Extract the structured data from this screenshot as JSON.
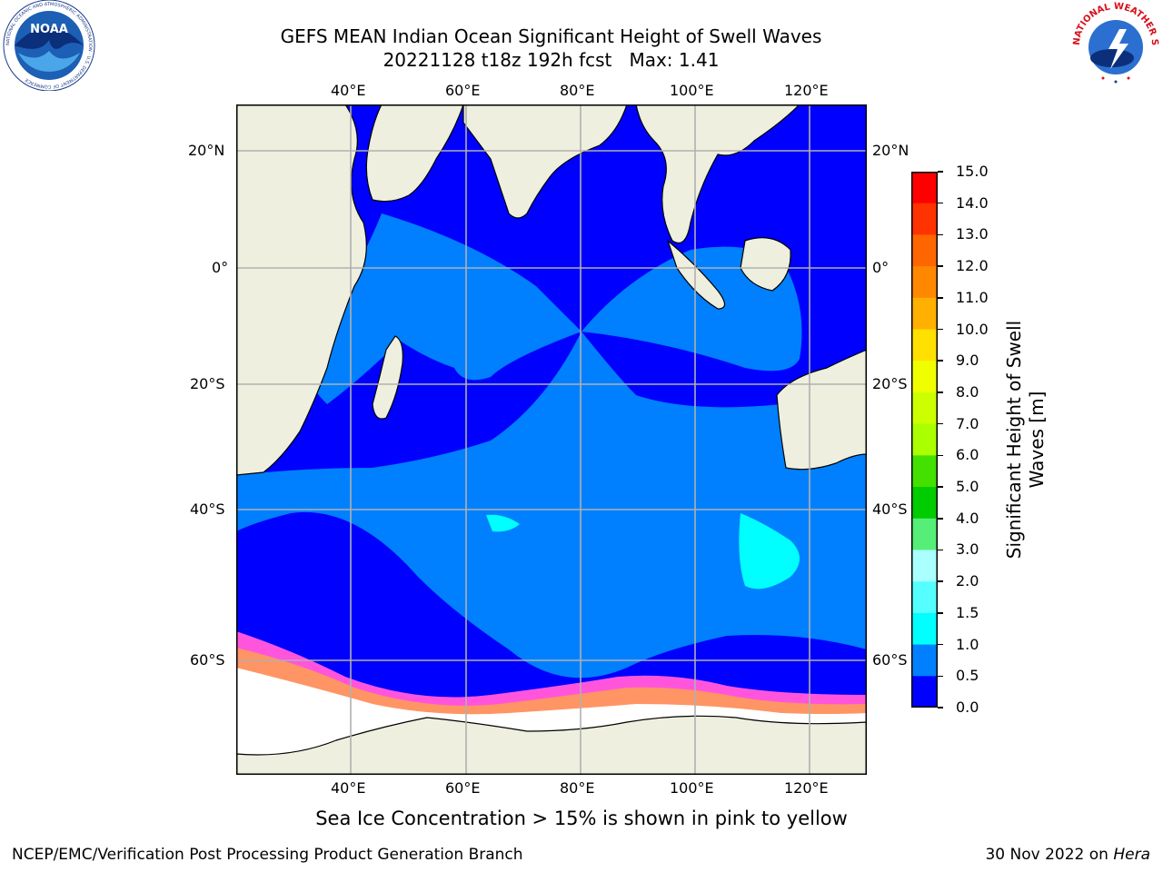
{
  "header": {
    "title_line1": "GEFS MEAN Indian Ocean Significant Height of Swell Waves",
    "title_line2": "20221128 t18z 192h fcst   Max: 1.41",
    "noaa_logo_text": "NOAA",
    "noaa_logo_ring_text": "NATIONAL OCEANIC AND ATMOSPHERIC ADMINISTRATION · U.S. DEPARTMENT OF COMMERCE",
    "nws_logo_ring_text": "NATIONAL WEATHER SERVICE"
  },
  "map": {
    "top_lon_labels": [
      "40°E",
      "60°E",
      "80°E",
      "100°E",
      "120°E"
    ],
    "bottom_lon_labels": [
      "40°E",
      "60°E",
      "80°E",
      "100°E",
      "120°E"
    ],
    "left_lat_labels": [
      "20°N",
      "0°",
      "20°S",
      "40°S",
      "60°S"
    ],
    "right_lat_labels": [
      "20°N",
      "0°",
      "20°S",
      "40°S",
      "60°S"
    ],
    "gridlines": true,
    "colors": {
      "ocean_low": "#0000ff",
      "ocean_mid": "#0080ff",
      "ocean_high": "#00ffff",
      "land": "#efefdf",
      "ice_edge": "#ff55dd",
      "ice_core": "#ffffff"
    }
  },
  "colorbar": {
    "title": "Significant Height of Swell Waves [m]",
    "tick_labels": [
      "15.0",
      "14.0",
      "13.0",
      "12.0",
      "11.0",
      "10.0",
      "9.0",
      "8.0",
      "7.0",
      "6.0",
      "5.0",
      "4.0",
      "3.0",
      "2.0",
      "1.5",
      "1.0",
      "0.5",
      "0.0"
    ],
    "bins": [
      {
        "range": "14.0-15.0",
        "color": "#ff0000"
      },
      {
        "range": "13.0-14.0",
        "color": "#ff3300"
      },
      {
        "range": "12.0-13.0",
        "color": "#ff6600"
      },
      {
        "range": "11.0-12.0",
        "color": "#ff8800"
      },
      {
        "range": "10.0-11.0",
        "color": "#ffb000"
      },
      {
        "range": "9.0-10.0",
        "color": "#ffe000"
      },
      {
        "range": "8.0-9.0",
        "color": "#f0ff00"
      },
      {
        "range": "7.0-8.0",
        "color": "#ccff00"
      },
      {
        "range": "6.0-7.0",
        "color": "#aaff00"
      },
      {
        "range": "5.0-6.0",
        "color": "#44e000"
      },
      {
        "range": "4.0-5.0",
        "color": "#00cc00"
      },
      {
        "range": "3.0-4.0",
        "color": "#55ee77"
      },
      {
        "range": "2.0-3.0",
        "color": "#aaffff"
      },
      {
        "range": "1.5-2.0",
        "color": "#55ffff"
      },
      {
        "range": "1.0-1.5",
        "color": "#00ffff"
      },
      {
        "range": "0.5-1.0",
        "color": "#0080ff"
      },
      {
        "range": "0.0-0.5",
        "color": "#0000ff"
      }
    ]
  },
  "caption": "Sea Ice Concentration > 15% is shown in pink to yellow",
  "footer": {
    "left": "NCEP/EMC/Verification Post Processing Product Generation Branch",
    "right_prefix": "30 Nov 2022 on ",
    "right_host": "Hera"
  }
}
